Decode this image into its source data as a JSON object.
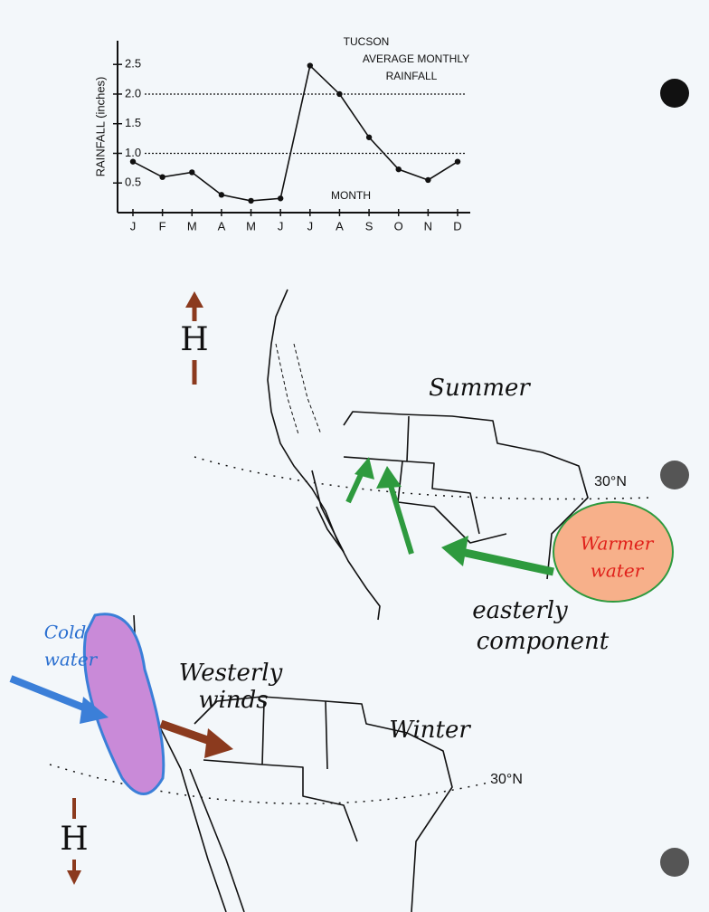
{
  "chart_data": {
    "type": "line",
    "title_lines": [
      "TUCSON",
      "AVERAGE MONTHLY",
      "RAINFALL"
    ],
    "xlabel": "MONTH",
    "ylabel": "RAINFALL (inches)",
    "categories": [
      "J",
      "F",
      "M",
      "A",
      "M",
      "J",
      "J",
      "A",
      "S",
      "O",
      "N",
      "D"
    ],
    "values": [
      0.86,
      0.6,
      0.68,
      0.3,
      0.2,
      0.24,
      2.48,
      2.0,
      1.27,
      0.73,
      0.55,
      0.86
    ],
    "color": "#111111",
    "ylim": [
      0,
      2.9
    ],
    "yticks": [
      0.5,
      {
        "value": 1,
        "label": "1.0"
      },
      1.5,
      {
        "value": 2,
        "label": "2.0"
      },
      2.5
    ],
    "reference_lines": [
      1,
      2
    ]
  },
  "maps": {
    "summer": {
      "title": "Summer",
      "latitude": "30°N",
      "high": "H",
      "warm_water": [
        "Warmer",
        "water"
      ],
      "wind": [
        "easterly",
        "component"
      ]
    },
    "winter": {
      "title": "Winter",
      "latitude": "30°N",
      "high": "H",
      "cold_water": [
        "Cold",
        "water"
      ],
      "wind": [
        "Westerly",
        "winds"
      ]
    }
  }
}
